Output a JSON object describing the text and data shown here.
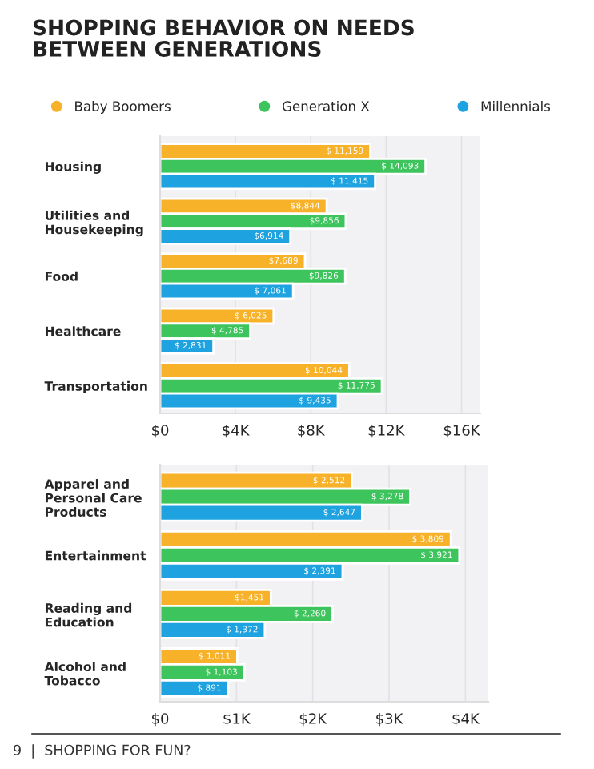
{
  "chart_data": [
    {
      "type": "bar",
      "orientation": "horizontal",
      "title": "SHOPPING BEHAVIOR ON NEEDS\nBETWEEN GENERATIONS",
      "legend": "top",
      "categories": [
        "Housing",
        "Utilities and\nHousekeeping",
        "Food",
        "Healthcare",
        "Transportation"
      ],
      "series": [
        {
          "name": "Baby Boomers",
          "color": "#f7b22a",
          "values": [
            11159,
            8844,
            7689,
            6025,
            10044
          ],
          "value_labels": [
            "$ 11,159",
            "$8,844",
            "$7,689",
            "$ 6,025",
            "$ 10,044"
          ]
        },
        {
          "name": "Generation X",
          "color": "#3ec45c",
          "values": [
            14093,
            9856,
            9826,
            4785,
            11775
          ],
          "value_labels": [
            "$ 14,093",
            "$9,856",
            "$9,826",
            "$ 4,785",
            "$ 11,775"
          ]
        },
        {
          "name": "Millennials",
          "color": "#1ea3e0",
          "values": [
            11415,
            6914,
            7061,
            2831,
            9435
          ],
          "value_labels": [
            "$ 11,415",
            "$6,914",
            "$ 7,061",
            "$ 2,831",
            "$ 9,435"
          ]
        }
      ],
      "xlim": [
        0,
        17000
      ],
      "xticks": [
        {
          "value": 0,
          "label": "$0"
        },
        {
          "value": 4000,
          "label": "$4K"
        },
        {
          "value": 8000,
          "label": "$8K"
        },
        {
          "value": 12000,
          "label": "$12K"
        },
        {
          "value": 16000,
          "label": "$16K"
        }
      ],
      "grid": "x"
    },
    {
      "type": "bar",
      "orientation": "horizontal",
      "legend": false,
      "categories": [
        "Apparel and\nPersonal Care\nProducts",
        "Entertainment",
        "Reading and\nEducation",
        "Alcohol and\nTobacco"
      ],
      "series": [
        {
          "color": "#f7b22a",
          "values": [
            2512,
            3809,
            1451,
            1011
          ],
          "value_labels": [
            "$ 2,512",
            "$ 3,809",
            "$1,451",
            "$ 1,011"
          ]
        },
        {
          "color": "#3ec45c",
          "values": [
            3278,
            3921,
            2260,
            1103
          ],
          "value_labels": [
            "$ 3,278",
            "$ 3,921",
            "$ 2,260",
            "$ 1,103"
          ]
        },
        {
          "color": "#1ea3e0",
          "values": [
            2647,
            2391,
            1372,
            891
          ],
          "value_labels": [
            "$ 2,647",
            "$ 2,391",
            "$ 1,372",
            "$ 891"
          ]
        }
      ],
      "xlim": [
        0,
        4300
      ],
      "xticks": [
        {
          "value": 0,
          "label": "$0"
        },
        {
          "value": 1000,
          "label": "$1K"
        },
        {
          "value": 2000,
          "label": "$2K"
        },
        {
          "value": 3000,
          "label": "$3K"
        },
        {
          "value": 4000,
          "label": "$4K"
        }
      ],
      "grid": "x",
      "annotations": [
        "9  |  SHOPPING FOR FUN?"
      ]
    }
  ]
}
